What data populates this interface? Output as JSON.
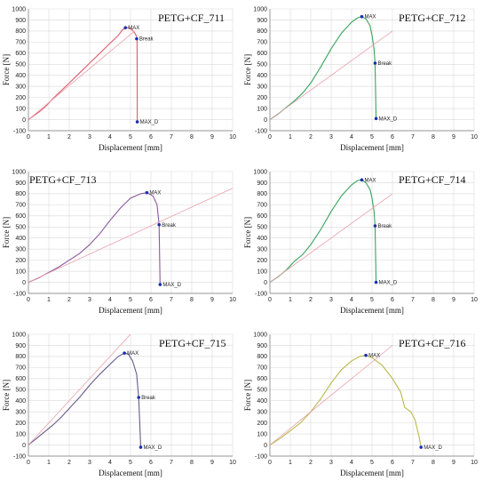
{
  "chart_data": [
    {
      "type": "line",
      "title": "PETG+CF_711",
      "xlabel": "Displacement [mm]",
      "ylabel": "Force [N]",
      "xlim": [
        0,
        10
      ],
      "ylim": [
        -100,
        1000
      ],
      "xticks": [
        "0",
        "1",
        "2",
        "3",
        "4",
        "5",
        "6",
        "7",
        "8",
        "9",
        "10"
      ],
      "yticks": [
        "-100",
        "0",
        "100",
        "200",
        "300",
        "400",
        "500",
        "600",
        "700",
        "800",
        "900",
        "1000"
      ],
      "grid": true,
      "series": [
        {
          "color": "#e05a6e",
          "x": [
            0,
            0.3,
            0.6,
            0.9,
            1.2,
            1.6,
            2.0,
            2.5,
            3.0,
            3.5,
            4.0,
            4.4,
            4.6,
            4.75,
            4.9,
            5.05,
            5.18,
            5.28,
            5.32,
            5.33
          ],
          "y": [
            0,
            40,
            80,
            130,
            190,
            260,
            330,
            420,
            510,
            600,
            690,
            760,
            810,
            830,
            830,
            815,
            790,
            760,
            730,
            -20
          ]
        },
        {
          "color": "#e8a0aa",
          "x": [
            0,
            5.2
          ],
          "y": [
            0,
            800
          ]
        }
      ],
      "points": [
        {
          "label": "MAX",
          "x": 4.75,
          "y": 830
        },
        {
          "label": "Break",
          "x": 5.3,
          "y": 730
        },
        {
          "label": "MAX_D",
          "x": 5.33,
          "y": -20
        }
      ]
    },
    {
      "type": "line",
      "title": "PETG+CF_712",
      "xlabel": "Displacement [mm]",
      "ylabel": "Force [N]",
      "xlim": [
        0,
        10
      ],
      "ylim": [
        -100,
        1000
      ],
      "xticks": [
        "0",
        "1",
        "2",
        "3",
        "4",
        "5",
        "6",
        "7",
        "8",
        "9",
        "10"
      ],
      "yticks": [
        "-100",
        "0",
        "100",
        "200",
        "300",
        "400",
        "500",
        "600",
        "700",
        "800",
        "900",
        "1000"
      ],
      "grid": true,
      "series": [
        {
          "color": "#3aa35e",
          "x": [
            0,
            0.4,
            0.8,
            1.2,
            1.6,
            2.0,
            2.5,
            3.0,
            3.5,
            4.0,
            4.3,
            4.5,
            4.7,
            4.9,
            5.0,
            5.1,
            5.15,
            5.2
          ],
          "y": [
            0,
            50,
            110,
            170,
            240,
            330,
            480,
            640,
            780,
            880,
            920,
            930,
            910,
            850,
            760,
            640,
            510,
            10
          ]
        },
        {
          "color": "#e8a0aa",
          "x": [
            0,
            6.0
          ],
          "y": [
            0,
            800
          ]
        }
      ],
      "points": [
        {
          "label": "MAX",
          "x": 4.5,
          "y": 930
        },
        {
          "label": "Break",
          "x": 5.15,
          "y": 510
        },
        {
          "label": "MAX_D",
          "x": 5.2,
          "y": 10
        }
      ]
    },
    {
      "type": "line",
      "title": "PETG+CF_713",
      "xlabel": "Displacement [mm]",
      "ylabel": "Force [N]",
      "xlim": [
        0,
        10
      ],
      "ylim": [
        -100,
        1000
      ],
      "xticks": [
        "0",
        "1",
        "2",
        "3",
        "4",
        "5",
        "6",
        "7",
        "8",
        "9",
        "10"
      ],
      "yticks": [
        "-100",
        "0",
        "100",
        "200",
        "300",
        "400",
        "500",
        "600",
        "700",
        "800",
        "900",
        "1000"
      ],
      "grid": true,
      "series": [
        {
          "color": "#8a5a9a",
          "x": [
            0,
            0.5,
            1.0,
            1.5,
            2.0,
            2.5,
            3.0,
            3.5,
            4.0,
            4.5,
            5.0,
            5.5,
            5.8,
            6.1,
            6.3,
            6.4,
            6.45
          ],
          "y": [
            0,
            40,
            90,
            140,
            200,
            260,
            340,
            440,
            560,
            670,
            760,
            800,
            810,
            780,
            700,
            520,
            -20
          ]
        },
        {
          "color": "#e8a0aa",
          "x": [
            0,
            10
          ],
          "y": [
            0,
            850
          ]
        }
      ],
      "points": [
        {
          "label": "MAX",
          "x": 5.8,
          "y": 810
        },
        {
          "label": "Break",
          "x": 6.4,
          "y": 520
        },
        {
          "label": "MAX_D",
          "x": 6.45,
          "y": -20
        }
      ]
    },
    {
      "type": "line",
      "title": "PETG+CF_714",
      "xlabel": "Displacement [mm]",
      "ylabel": "Force [N]",
      "xlim": [
        0,
        10
      ],
      "ylim": [
        -100,
        1000
      ],
      "xticks": [
        "0",
        "1",
        "2",
        "3",
        "4",
        "5",
        "6",
        "7",
        "8",
        "9",
        "10"
      ],
      "yticks": [
        "-100",
        "0",
        "100",
        "200",
        "300",
        "400",
        "500",
        "600",
        "700",
        "800",
        "900",
        "1000"
      ],
      "grid": true,
      "series": [
        {
          "color": "#3aa35e",
          "x": [
            0,
            0.4,
            0.8,
            1.2,
            1.6,
            2.0,
            2.5,
            3.0,
            3.5,
            4.0,
            4.3,
            4.5,
            4.7,
            4.9,
            5.0,
            5.1,
            5.15,
            5.2
          ],
          "y": [
            0,
            50,
            110,
            190,
            250,
            340,
            480,
            640,
            780,
            880,
            920,
            925,
            900,
            840,
            760,
            640,
            510,
            0
          ]
        },
        {
          "color": "#e8a0aa",
          "x": [
            0,
            6.0
          ],
          "y": [
            0,
            800
          ]
        }
      ],
      "points": [
        {
          "label": "MAX",
          "x": 4.5,
          "y": 925
        },
        {
          "label": "Break",
          "x": 5.15,
          "y": 510
        },
        {
          "label": "MAX_D",
          "x": 5.2,
          "y": 0
        }
      ]
    },
    {
      "type": "line",
      "title": "PETG+CF_715",
      "xlabel": "Displacement [mm]",
      "ylabel": "Force [N]",
      "xlim": [
        0,
        10
      ],
      "ylim": [
        -100,
        1000
      ],
      "xticks": [
        "0",
        "1",
        "2",
        "3",
        "4",
        "5",
        "6",
        "7",
        "8",
        "9",
        "10"
      ],
      "yticks": [
        "-100",
        "0",
        "100",
        "200",
        "300",
        "400",
        "500",
        "600",
        "700",
        "800",
        "900",
        "1000"
      ],
      "grid": true,
      "series": [
        {
          "color": "#6a5a8a",
          "x": [
            0,
            0.4,
            0.8,
            1.2,
            1.6,
            2.0,
            2.5,
            3.0,
            3.5,
            4.0,
            4.4,
            4.7,
            4.9,
            5.1,
            5.3,
            5.4,
            5.45,
            5.5
          ],
          "y": [
            0,
            60,
            120,
            180,
            250,
            330,
            430,
            540,
            640,
            730,
            800,
            830,
            820,
            760,
            640,
            430,
            200,
            -20
          ]
        },
        {
          "color": "#e8a0aa",
          "x": [
            0,
            5.0
          ],
          "y": [
            0,
            1000
          ]
        }
      ],
      "points": [
        {
          "label": "MAX",
          "x": 4.7,
          "y": 830
        },
        {
          "label": "Break",
          "x": 5.4,
          "y": 430
        },
        {
          "label": "MAX_D",
          "x": 5.5,
          "y": -20
        }
      ]
    },
    {
      "type": "line",
      "title": "PETG+CF_716",
      "xlabel": "Displacement [mm]",
      "ylabel": "Force [N]",
      "xlim": [
        0,
        10
      ],
      "ylim": [
        -100,
        1000
      ],
      "xticks": [
        "0",
        "1",
        "2",
        "3",
        "4",
        "5",
        "6",
        "7",
        "8",
        "9",
        "10"
      ],
      "yticks": [
        "-100",
        "0",
        "100",
        "200",
        "300",
        "400",
        "500",
        "600",
        "700",
        "800",
        "900",
        "1000"
      ],
      "grid": true,
      "series": [
        {
          "color": "#b8b84a",
          "x": [
            0,
            0.5,
            1.0,
            1.5,
            2.0,
            2.5,
            3.0,
            3.5,
            4.0,
            4.4,
            4.7,
            5.0,
            5.5,
            6.0,
            6.4,
            6.6,
            6.9,
            7.1,
            7.3,
            7.4
          ],
          "y": [
            0,
            60,
            130,
            200,
            300,
            420,
            560,
            680,
            760,
            800,
            810,
            790,
            720,
            600,
            480,
            340,
            300,
            230,
            80,
            -20
          ]
        },
        {
          "color": "#e8a0aa",
          "x": [
            0,
            6.0
          ],
          "y": [
            0,
            900
          ]
        }
      ],
      "points": [
        {
          "label": "MAX",
          "x": 4.7,
          "y": 810
        },
        {
          "label": "MAX_D",
          "x": 7.4,
          "y": -20
        }
      ]
    }
  ]
}
